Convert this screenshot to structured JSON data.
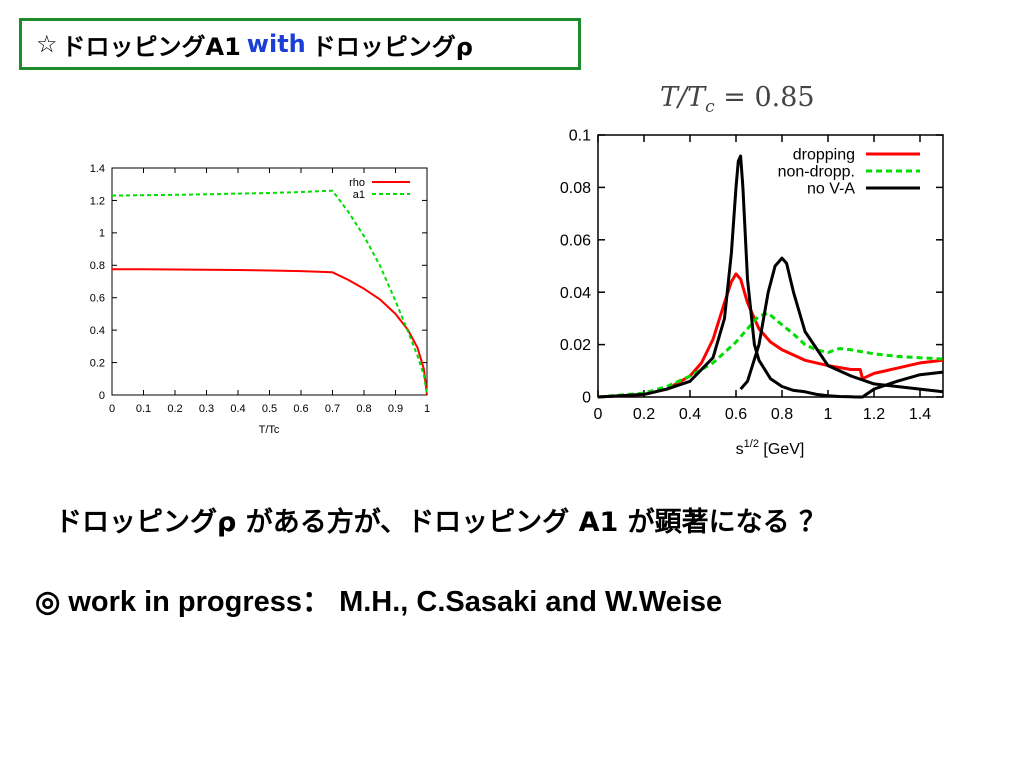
{
  "slide": {
    "title_star": "☆",
    "title_part1": "ドロッピングA1",
    "title_with": "with",
    "title_part2": "ドロッピングρ",
    "formula_left": "T/T",
    "formula_sub": "c",
    "formula_right": " = 0.85",
    "question": "ドロッピングρ がある方が、ドロッピング A1 が顕著になる ？",
    "credits": "◎ work in progress： M.H., C.Sasaki and W.Weise"
  },
  "colors": {
    "red": "#ff0000",
    "green": "#00dd00",
    "black": "#000000",
    "title_border": "#1e8b2a",
    "with_blue": "#1a3fd6"
  },
  "chart_data": [
    {
      "type": "line",
      "xlabel": "T/Tc",
      "ylabel": "",
      "xlim": [
        0,
        1
      ],
      "ylim": [
        0,
        1.4
      ],
      "xticks": [
        "0",
        "0.1",
        "0.2",
        "0.3",
        "0.4",
        "0.5",
        "0.6",
        "0.7",
        "0.8",
        "0.9",
        "1"
      ],
      "yticks": [
        "0",
        "0.2",
        "0.4",
        "0.6",
        "0.8",
        "1",
        "1.2",
        "1.4"
      ],
      "legend_position": "top-right",
      "series": [
        {
          "name": "rho",
          "style": "solid",
          "color": "#ff0000",
          "x": [
            0,
            0.1,
            0.2,
            0.3,
            0.4,
            0.5,
            0.6,
            0.7,
            0.75,
            0.8,
            0.85,
            0.9,
            0.94,
            0.97,
            0.99,
            1.0
          ],
          "y": [
            0.775,
            0.775,
            0.774,
            0.773,
            0.771,
            0.768,
            0.764,
            0.757,
            0.71,
            0.655,
            0.59,
            0.5,
            0.4,
            0.29,
            0.16,
            0.0
          ]
        },
        {
          "name": "a1",
          "style": "dashed",
          "color": "#00dd00",
          "x": [
            0,
            0.1,
            0.2,
            0.3,
            0.4,
            0.5,
            0.6,
            0.7,
            0.75,
            0.8,
            0.85,
            0.9,
            0.94,
            0.97,
            0.99,
            1.0
          ],
          "y": [
            1.23,
            1.232,
            1.235,
            1.238,
            1.242,
            1.246,
            1.252,
            1.26,
            1.13,
            0.98,
            0.8,
            0.58,
            0.39,
            0.24,
            0.12,
            0.0
          ]
        }
      ]
    },
    {
      "type": "line",
      "xlabel": "s^{1/2} [GeV]",
      "ylabel": "",
      "xlim": [
        0,
        1.5
      ],
      "ylim": [
        0,
        0.1
      ],
      "xticks": [
        "0",
        "0.2",
        "0.4",
        "0.6",
        "0.8",
        "1",
        "1.2",
        "1.4"
      ],
      "yticks": [
        "0",
        "0.02",
        "0.04",
        "0.06",
        "0.08",
        "0.1"
      ],
      "legend_position": "top-right",
      "series": [
        {
          "name": "dropping",
          "style": "solid",
          "color": "#ff0000",
          "x": [
            0,
            0.2,
            0.3,
            0.4,
            0.45,
            0.5,
            0.55,
            0.58,
            0.6,
            0.62,
            0.65,
            0.7,
            0.75,
            0.8,
            0.9,
            1.0,
            1.1,
            1.14,
            1.15,
            1.2,
            1.3,
            1.4,
            1.5
          ],
          "y": [
            0,
            0.001,
            0.003,
            0.008,
            0.013,
            0.022,
            0.036,
            0.044,
            0.047,
            0.045,
            0.036,
            0.026,
            0.021,
            0.018,
            0.014,
            0.012,
            0.0105,
            0.0105,
            0.007,
            0.009,
            0.011,
            0.013,
            0.014
          ]
        },
        {
          "name": "non-dropp.",
          "style": "dashed",
          "color": "#00dd00",
          "x": [
            0,
            0.2,
            0.3,
            0.4,
            0.5,
            0.55,
            0.6,
            0.65,
            0.7,
            0.74,
            0.78,
            0.85,
            0.9,
            0.95,
            1.0,
            1.05,
            1.1,
            1.2,
            1.3,
            1.4,
            1.5
          ],
          "y": [
            0,
            0.0015,
            0.004,
            0.008,
            0.013,
            0.017,
            0.021,
            0.026,
            0.031,
            0.032,
            0.029,
            0.024,
            0.02,
            0.018,
            0.017,
            0.0185,
            0.018,
            0.0165,
            0.0155,
            0.015,
            0.0145
          ]
        },
        {
          "name": "no V-A",
          "style": "solid",
          "color": "#000000",
          "x": [
            0,
            0.2,
            0.3,
            0.4,
            0.5,
            0.55,
            0.58,
            0.6,
            0.61,
            0.62,
            0.63,
            0.65,
            0.68,
            0.7,
            0.75,
            0.8,
            0.85,
            0.9,
            0.95,
            1.0,
            1.05,
            1.1,
            1.12,
            1.15,
            1.2,
            1.3,
            1.4,
            1.5
          ],
          "y": [
            0,
            0.001,
            0.003,
            0.006,
            0.015,
            0.03,
            0.055,
            0.08,
            0.09,
            0.092,
            0.08,
            0.045,
            0.02,
            0.014,
            0.007,
            0.004,
            0.0025,
            0.002,
            0.001,
            0.0005,
            0.0002,
            0.0001,
            0.0,
            0.0,
            0.003,
            0.006,
            0.0085,
            0.0095
          ]
        },
        {
          "name": "",
          "style": "solid",
          "color": "#000000",
          "x": [
            0.62,
            0.65,
            0.7,
            0.74,
            0.77,
            0.8,
            0.82,
            0.85,
            0.9,
            1.0,
            1.1,
            1.2,
            1.3,
            1.4,
            1.5
          ],
          "y": [
            0.003,
            0.006,
            0.02,
            0.04,
            0.05,
            0.053,
            0.051,
            0.04,
            0.025,
            0.012,
            0.008,
            0.005,
            0.004,
            0.003,
            0.002
          ]
        }
      ]
    }
  ]
}
